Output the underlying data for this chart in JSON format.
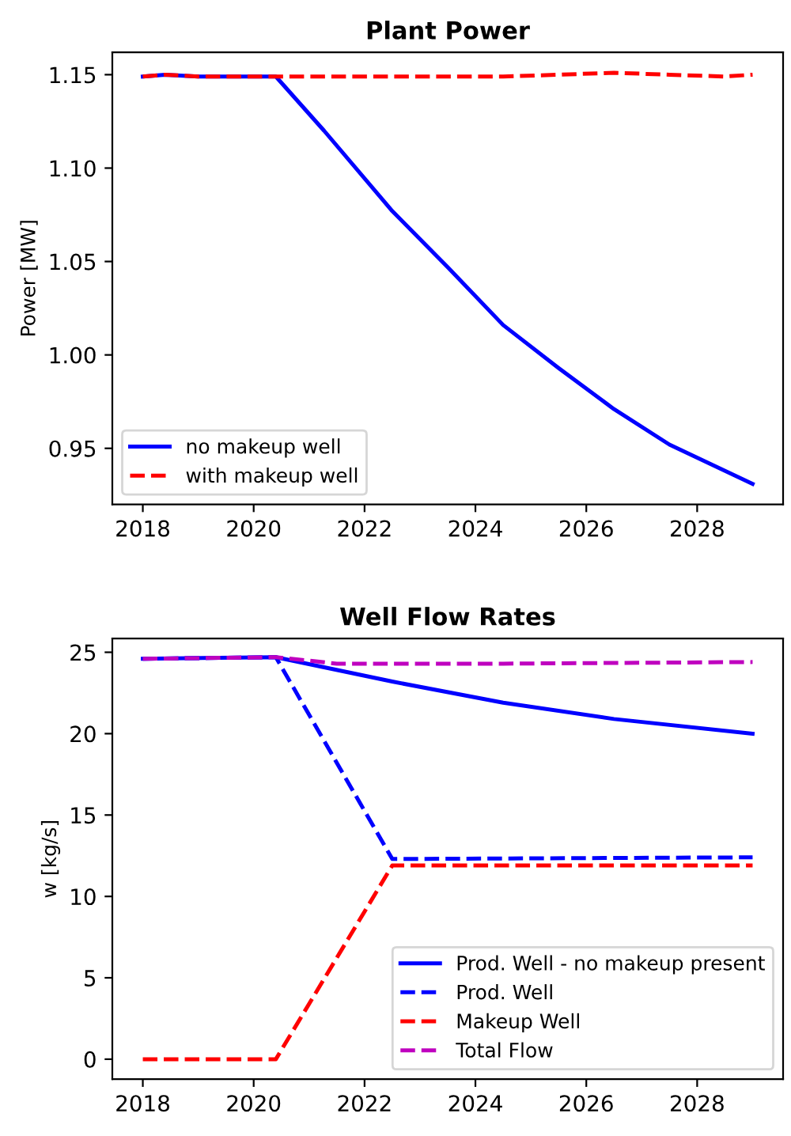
{
  "chart_data": [
    {
      "type": "line",
      "title": "Plant Power",
      "ylabel": "Power [MW]",
      "xlim": [
        2017.45,
        2029.55
      ],
      "xticks": [
        2018,
        2020,
        2022,
        2024,
        2026,
        2028
      ],
      "ylim": [
        0.92,
        1.162
      ],
      "yticks": [
        0.95,
        {
          "value": 1.0,
          "label": "1.00"
        },
        1.05,
        {
          "value": 1.1,
          "label": "1.10"
        },
        1.15
      ],
      "legend": "bottom left",
      "grid": false,
      "series": [
        {
          "name": "no makeup well",
          "color": "#0000ff",
          "line_style": "solid",
          "x": [
            2018,
            2018.4,
            2019,
            2020.4,
            2021.27,
            2022.5,
            2023.5,
            2024.5,
            2025.5,
            2026.5,
            2027.5,
            2029
          ],
          "values": [
            1.149,
            1.15,
            1.149,
            1.149,
            1.12,
            1.077,
            1.047,
            1.016,
            0.993,
            0.971,
            0.952,
            0.931
          ]
        },
        {
          "name": "with makeup well",
          "color": "#ff0000",
          "line_style": "dashed",
          "x": [
            2018,
            2018.4,
            2019,
            2020.4,
            2022.5,
            2024.5,
            2025.5,
            2026.5,
            2027.5,
            2028.5,
            2029
          ],
          "values": [
            1.149,
            1.15,
            1.149,
            1.149,
            1.149,
            1.149,
            1.15,
            1.151,
            1.15,
            1.149,
            1.15
          ]
        }
      ]
    },
    {
      "type": "line",
      "title": "Well Flow Rates",
      "ylabel": "w [kg/s]",
      "xlim": [
        2017.45,
        2029.55
      ],
      "xticks": [
        2018,
        2020,
        2022,
        2024,
        2026,
        2028
      ],
      "ylim": [
        -1.23,
        25.85
      ],
      "yticks": [
        0,
        5,
        10,
        15,
        20,
        25
      ],
      "legend": "bottom right",
      "grid": false,
      "series": [
        {
          "name": "Prod. Well - no makeup present",
          "color": "#0000ff",
          "line_style": "solid",
          "x": [
            2018,
            2020.4,
            2022.5,
            2024.5,
            2026.5,
            2029
          ],
          "values": [
            24.6,
            24.7,
            23.2,
            21.9,
            20.9,
            20.0
          ]
        },
        {
          "name": "Prod. Well",
          "color": "#0000ff",
          "line_style": "dashed",
          "x": [
            2018,
            2020.4,
            2022.5,
            2029
          ],
          "values": [
            24.6,
            24.7,
            12.3,
            12.4
          ]
        },
        {
          "name": "Makeup Well",
          "color": "#ff0000",
          "line_style": "dashed",
          "x": [
            2018,
            2020.4,
            2022.5,
            2029
          ],
          "values": [
            0,
            0,
            11.9,
            11.9
          ]
        },
        {
          "name": "Total Flow",
          "color": "#bf00bf",
          "line_style": "dashed",
          "x": [
            2018,
            2020.4,
            2021.5,
            2024.5,
            2029
          ],
          "values": [
            24.6,
            24.7,
            24.3,
            24.3,
            24.4
          ]
        }
      ]
    }
  ]
}
